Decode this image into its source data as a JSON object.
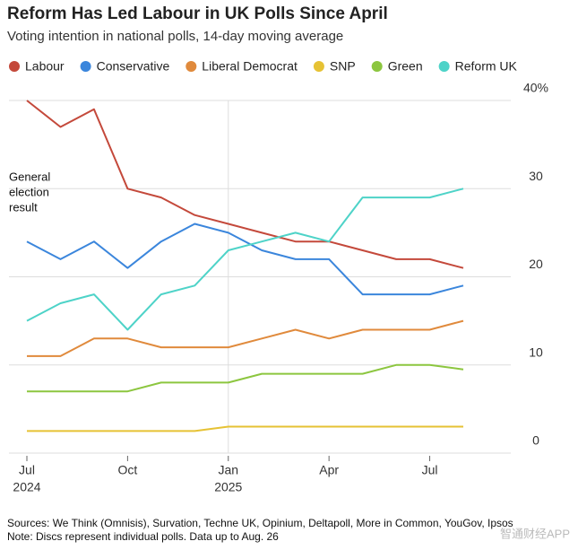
{
  "chart_data": {
    "type": "line",
    "title": "Reform Has Led Labour in UK Polls Since April",
    "subtitle": "Voting intention in national polls, 14-day moving average",
    "source": "Sources: We Think (Omnisis), Survation, Techne UK, Opinium, Deltapoll, More in Common, YouGov, Ipsos",
    "note": "Note: Discs represent individual polls. Data up to Aug. 26",
    "watermark": "智通财经APP",
    "annotation": [
      "General",
      "election",
      "result"
    ],
    "x": [
      "2024-07",
      "2024-08",
      "2024-09",
      "2024-10",
      "2024-11",
      "2024-12",
      "2025-01",
      "2025-02",
      "2025-03",
      "2025-04",
      "2025-05",
      "2025-06",
      "2025-07",
      "2025-08"
    ],
    "xlim": [
      "2024-07",
      "2025-08"
    ],
    "xticks": [
      {
        "value": "2024-07",
        "label": "Jul"
      },
      {
        "value": "2024-10",
        "label": "Oct"
      },
      {
        "value": "2025-01",
        "label": "Jan"
      },
      {
        "value": "2025-04",
        "label": "Apr"
      },
      {
        "value": "2025-07",
        "label": "Jul"
      }
    ],
    "x_year_labels": [
      {
        "value": "2024-07",
        "label": "2024"
      },
      {
        "value": "2025-01",
        "label": "2025"
      }
    ],
    "ylim": [
      0,
      40
    ],
    "yticks": [
      0,
      10,
      20,
      30,
      {
        "value": 40,
        "label": "40%"
      }
    ],
    "grid": true,
    "series": [
      {
        "name": "Labour",
        "color": "#c4493b",
        "values": [
          40,
          37,
          39,
          30,
          29,
          27,
          26,
          25,
          24,
          24,
          23,
          22,
          22,
          21
        ]
      },
      {
        "name": "Conservative",
        "color": "#3b86dc",
        "values": [
          24,
          22,
          24,
          21,
          24,
          26,
          25,
          23,
          22,
          22,
          18,
          18,
          18,
          19
        ]
      },
      {
        "name": "Liberal Democrat",
        "color": "#e08a3c",
        "values": [
          11,
          11,
          13,
          13,
          12,
          12,
          12,
          13,
          14,
          13,
          14,
          14,
          14,
          15
        ]
      },
      {
        "name": "SNP",
        "color": "#e6c234",
        "values": [
          2.5,
          2.5,
          2.5,
          2.5,
          2.5,
          2.5,
          3,
          3,
          3,
          3,
          3,
          3,
          3,
          3
        ]
      },
      {
        "name": "Green",
        "color": "#8cc63f",
        "values": [
          7,
          7,
          7,
          7,
          8,
          8,
          8,
          9,
          9,
          9,
          9,
          10,
          10,
          9.5
        ]
      },
      {
        "name": "Reform UK",
        "color": "#4ed3c8",
        "values": [
          15,
          17,
          18,
          14,
          18,
          19,
          23,
          24,
          25,
          24,
          29,
          29,
          29,
          30
        ]
      }
    ]
  }
}
